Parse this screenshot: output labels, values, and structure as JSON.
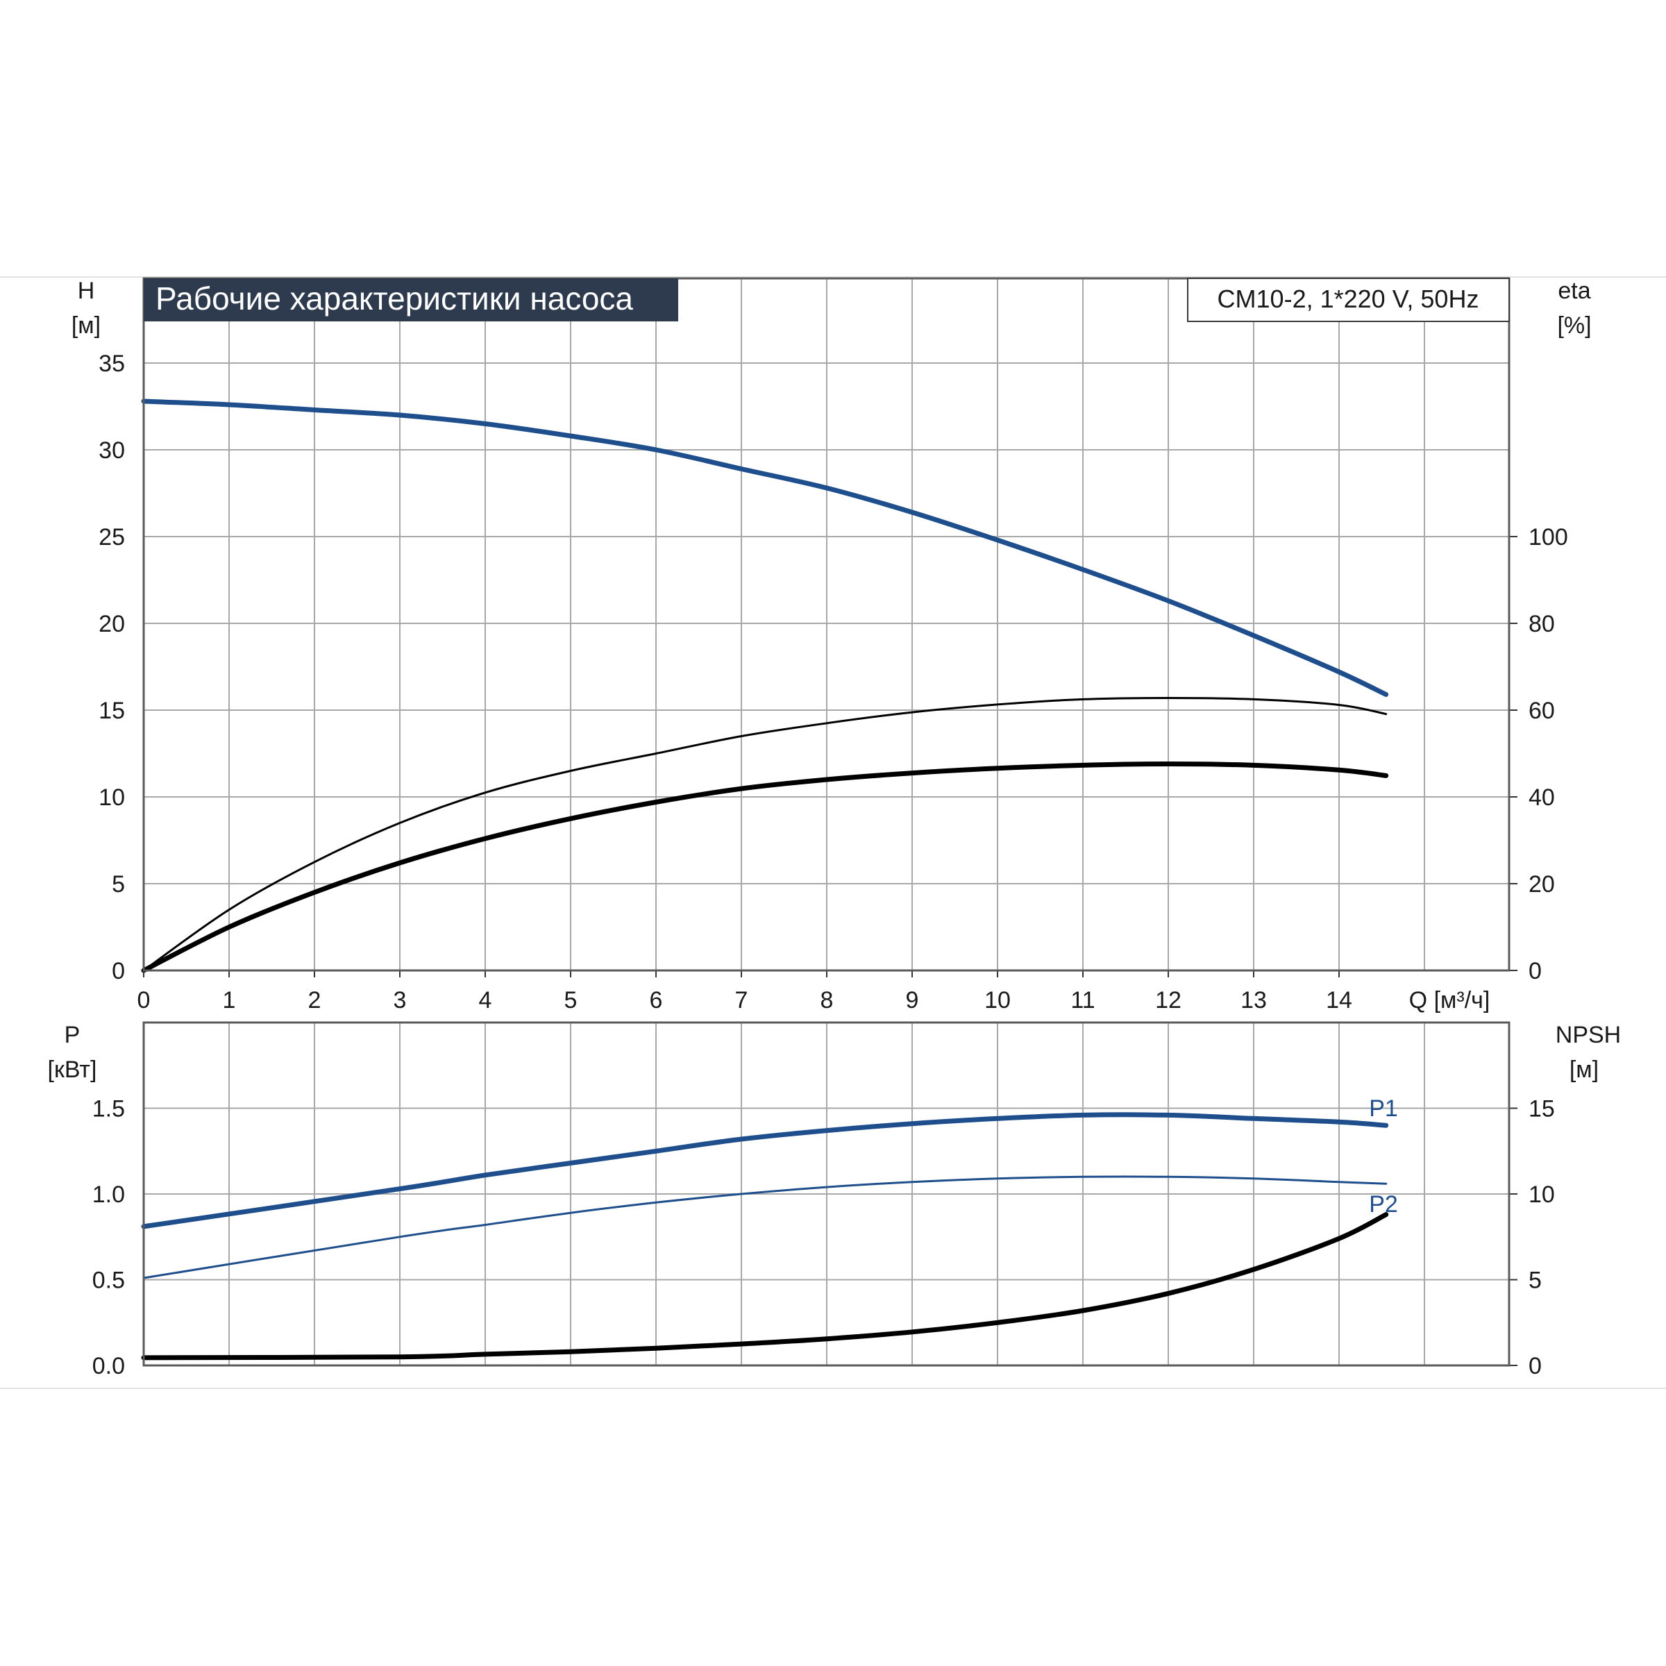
{
  "title": "Рабочие характеристики насоса",
  "model_label": "CM10-2, 1*220 V, 50Hz",
  "colors": {
    "blue": "#1f4e8c",
    "black": "#000000",
    "title_bg": "#2e3b4e",
    "grid": "#a8a8a8"
  },
  "chart_data": [
    {
      "type": "line",
      "name": "head-efficiency",
      "x_axis": {
        "label": "Q [м³/ч]",
        "range": [
          0,
          16
        ],
        "ticks": [
          0,
          1,
          2,
          3,
          4,
          5,
          6,
          7,
          8,
          9,
          10,
          11,
          12,
          13,
          14
        ]
      },
      "y_left": {
        "label_top": "H",
        "label_unit": "[м]",
        "range": [
          0,
          40
        ],
        "ticks": [
          0,
          5,
          10,
          15,
          20,
          25,
          30,
          35
        ]
      },
      "y_right": {
        "label_top": "eta",
        "label_unit": "[%]",
        "range": [
          0,
          160
        ],
        "ticks": [
          0,
          20,
          40,
          60,
          80,
          100
        ]
      },
      "grid": true,
      "series": [
        {
          "axis": "left",
          "color": "blue",
          "style": "thick",
          "x": [
            0,
            1,
            2,
            3,
            4,
            5,
            6,
            7,
            8,
            9,
            10,
            11,
            12,
            13,
            14,
            14.55
          ],
          "y": [
            32.8,
            32.6,
            32.3,
            32.0,
            31.5,
            30.8,
            30.0,
            28.9,
            27.8,
            26.4,
            24.8,
            23.1,
            21.3,
            19.3,
            17.2,
            15.9
          ]
        },
        {
          "axis": "right",
          "color": "black",
          "style": "thin",
          "x": [
            0,
            1,
            2,
            3,
            4,
            5,
            6,
            7,
            8,
            9,
            10,
            11,
            12,
            13,
            14,
            14.55
          ],
          "y": [
            0,
            14,
            25,
            34,
            41,
            46,
            50,
            54,
            57,
            59.5,
            61.3,
            62.5,
            62.8,
            62.5,
            61.2,
            59.1
          ]
        },
        {
          "axis": "right",
          "color": "black",
          "style": "thick",
          "x": [
            0,
            1,
            2,
            3,
            4,
            5,
            6,
            7,
            8,
            9,
            10,
            11,
            12,
            13,
            14,
            14.55
          ],
          "y": [
            0,
            10,
            18,
            24.8,
            30.4,
            35,
            38.8,
            41.9,
            44,
            45.5,
            46.6,
            47.3,
            47.6,
            47.3,
            46.2,
            44.9
          ]
        }
      ]
    },
    {
      "type": "line",
      "name": "power-npsh",
      "x_axis": {
        "range": [
          0,
          16
        ]
      },
      "y_left": {
        "label_top": "P",
        "label_unit": "[кВт]",
        "range": [
          0,
          2.0
        ],
        "ticks": [
          0.0,
          0.5,
          1.0,
          1.5
        ],
        "tick_labels": [
          "0.0",
          "0.5",
          "1.0",
          "1.5"
        ]
      },
      "y_right": {
        "label_top": "NPSH",
        "label_unit": "[м]",
        "range": [
          0,
          20
        ],
        "ticks": [
          0,
          5,
          10,
          15
        ]
      },
      "grid": true,
      "series": [
        {
          "name": "P1",
          "axis": "left",
          "color": "blue",
          "style": "thick",
          "x": [
            0,
            3,
            4,
            5,
            6,
            7,
            8,
            9,
            10,
            11,
            12,
            13,
            14,
            14.55
          ],
          "y": [
            0.81,
            1.03,
            1.11,
            1.18,
            1.25,
            1.32,
            1.37,
            1.41,
            1.44,
            1.46,
            1.46,
            1.44,
            1.42,
            1.4
          ]
        },
        {
          "name": "P2",
          "axis": "left",
          "color": "blue",
          "style": "thin",
          "x": [
            0,
            3,
            4,
            5,
            6,
            7,
            8,
            9,
            10,
            11,
            12,
            13,
            14,
            14.55
          ],
          "y": [
            0.51,
            0.75,
            0.82,
            0.89,
            0.95,
            1.0,
            1.04,
            1.07,
            1.09,
            1.1,
            1.1,
            1.09,
            1.07,
            1.06
          ]
        },
        {
          "axis": "right",
          "color": "black",
          "style": "thick",
          "x": [
            0,
            3,
            4,
            5,
            6,
            7,
            8,
            9,
            10,
            11,
            12,
            13,
            14,
            14.55
          ],
          "y": [
            0.45,
            0.5,
            0.65,
            0.8,
            1.0,
            1.25,
            1.55,
            1.95,
            2.5,
            3.2,
            4.2,
            5.6,
            7.4,
            8.8
          ]
        }
      ]
    }
  ]
}
